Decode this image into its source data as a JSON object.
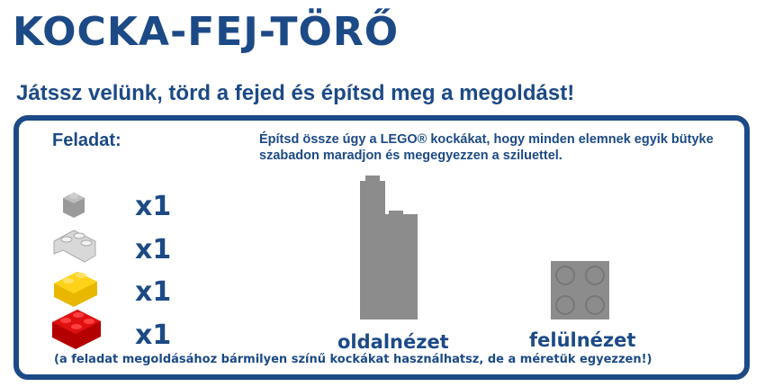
{
  "header": {
    "title": "KOCKA-FEJ-TÖRŐ",
    "subtitle": "Játssz velünk, törd a fejed és építsd meg a megoldást!"
  },
  "task": {
    "label": "Feladat:",
    "instruction": "Építsd össze úgy a LEGO® kockákat, hogy minden elemnek egyik bütyke szabadon maradjon és megegyezzen a sziluettel.",
    "pieces": [
      {
        "count": "x1"
      },
      {
        "count": "x1"
      },
      {
        "count": "x1"
      },
      {
        "count": "x1"
      }
    ],
    "views": {
      "side": "oldalnézet",
      "top": "felülnézet"
    },
    "note": "(a feladat megoldásához bármilyen színű kockákat használhatsz, de a méretük egyezzen!)"
  }
}
